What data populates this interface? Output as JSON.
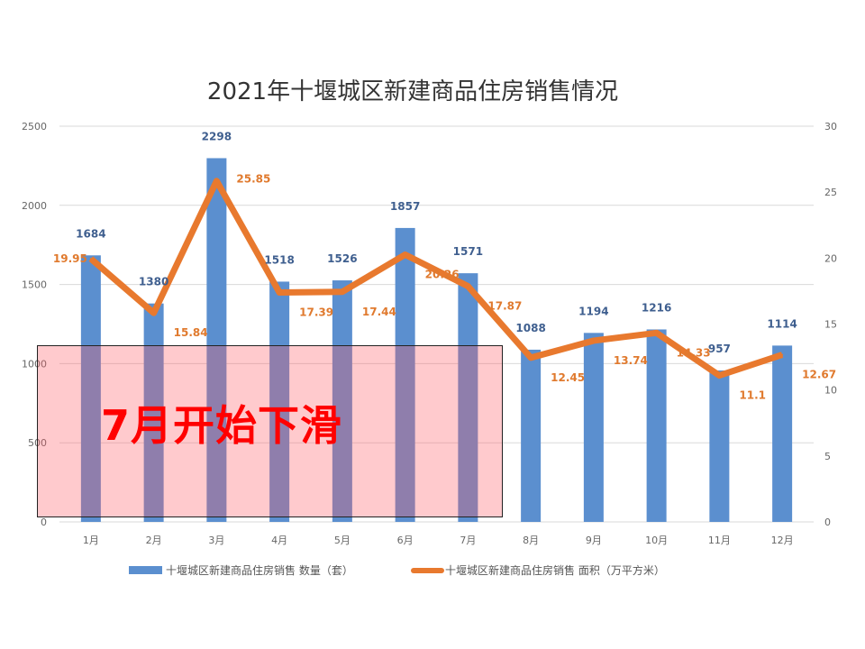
{
  "chart_data": {
    "type": "bar+line",
    "title": "2021年十堰城区新建商品住房销售情况",
    "categories": [
      "1月",
      "2月",
      "3月",
      "4月",
      "5月",
      "6月",
      "7月",
      "8月",
      "9月",
      "10月",
      "11月",
      "12月"
    ],
    "series": [
      {
        "name": "十堰城区新建商品住房销售 数量（套）",
        "type": "bar",
        "axis": "left",
        "color": "#5b8fcf",
        "values": [
          1684,
          1380,
          2298,
          1518,
          1526,
          1857,
          1571,
          1088,
          1194,
          1216,
          957,
          1114
        ]
      },
      {
        "name": "十堰城区新建商品住房销售 面积（万平方米）",
        "type": "line",
        "axis": "right",
        "color": "#e8792e",
        "values": [
          19.95,
          15.84,
          25.85,
          17.39,
          17.44,
          20.26,
          17.87,
          12.45,
          13.74,
          14.33,
          11.1,
          12.67
        ],
        "labels": [
          "19.95",
          "15.84",
          "25.85",
          "17.39",
          "17.44",
          "20.26",
          "17.87",
          "12.45",
          "13.74",
          "14.33",
          "11.1",
          "12.67"
        ]
      }
    ],
    "y_left": {
      "range": [
        0,
        2500
      ],
      "ticks": [
        "0",
        "500",
        "1000",
        "1500",
        "2000",
        "2500"
      ]
    },
    "y_right": {
      "range": [
        0,
        30
      ],
      "ticks": [
        "0",
        "5",
        "10",
        "15",
        "20",
        "25",
        "30"
      ]
    },
    "grid": true,
    "legend_position": "bottom"
  },
  "annotation": {
    "text": "7月开始下滑",
    "color": "#ff0000"
  }
}
